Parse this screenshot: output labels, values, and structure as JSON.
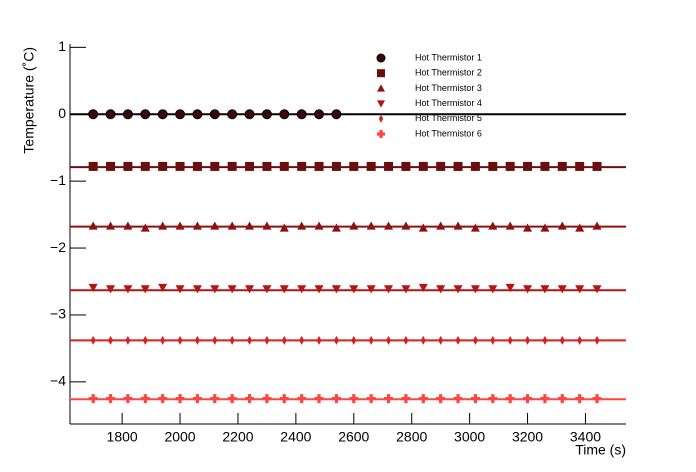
{
  "chart_data": {
    "type": "scatter",
    "x_label": "Time (s)",
    "y_label": "Temperature (˚C)",
    "xlim": [
      1620,
      3540
    ],
    "ylim": [
      -4.63,
      1.05
    ],
    "xticks": [
      1800,
      2000,
      2200,
      2400,
      2600,
      2800,
      3000,
      3200,
      3400
    ],
    "yticks": [
      1,
      0,
      {
        "value": -1,
        "label": "−1"
      },
      {
        "value": -2,
        "label": "−2"
      },
      {
        "value": -3,
        "label": "−3"
      },
      {
        "value": -4,
        "label": "−4"
      }
    ],
    "series": [
      {
        "name": "Hot Thermistor 1",
        "color": "#3a0808",
        "marker": "circle",
        "fit": 0,
        "x": [
          1700,
          1760,
          1820,
          1880,
          1940,
          2000,
          2060,
          2120,
          2180,
          2240,
          2300,
          2360,
          2420,
          2480,
          2540
        ],
        "values": [
          0,
          0,
          0,
          0,
          0,
          0,
          0,
          0,
          0,
          0,
          0,
          0,
          0,
          0,
          0
        ]
      },
      {
        "name": "Hot Thermistor 2",
        "color": "#6b0e0e",
        "marker": "square",
        "fit": -0.79,
        "x": [
          1700,
          1760,
          1820,
          1880,
          1940,
          2000,
          2060,
          2120,
          2180,
          2240,
          2300,
          2360,
          2420,
          2480,
          2540,
          2600,
          2660,
          2720,
          2780,
          2840,
          2900,
          2960,
          3020,
          3080,
          3140,
          3200,
          3260,
          3320,
          3380,
          3440
        ],
        "values": [
          -0.78,
          -0.78,
          -0.78,
          -0.78,
          -0.78,
          -0.78,
          -0.78,
          -0.78,
          -0.78,
          -0.78,
          -0.78,
          -0.78,
          -0.78,
          -0.78,
          -0.78,
          -0.78,
          -0.78,
          -0.78,
          -0.78,
          -0.78,
          -0.78,
          -0.78,
          -0.78,
          -0.78,
          -0.78,
          -0.78,
          -0.78,
          -0.78,
          -0.78,
          -0.78
        ]
      },
      {
        "name": "Hot Thermistor 3",
        "color": "#8e1010",
        "marker": "triangle-up",
        "fit": -1.68,
        "x": [
          1700,
          1760,
          1820,
          1880,
          1940,
          2000,
          2060,
          2120,
          2180,
          2240,
          2300,
          2360,
          2420,
          2480,
          2540,
          2600,
          2660,
          2720,
          2780,
          2840,
          2900,
          2960,
          3020,
          3080,
          3140,
          3200,
          3260,
          3320,
          3380,
          3440
        ],
        "values": [
          -1.67,
          -1.67,
          -1.67,
          -1.7,
          -1.67,
          -1.67,
          -1.67,
          -1.67,
          -1.67,
          -1.67,
          -1.67,
          -1.7,
          -1.67,
          -1.67,
          -1.7,
          -1.67,
          -1.67,
          -1.67,
          -1.67,
          -1.7,
          -1.67,
          -1.67,
          -1.7,
          -1.67,
          -1.67,
          -1.7,
          -1.7,
          -1.67,
          -1.7,
          -1.67
        ]
      },
      {
        "name": "Hot Thermistor 4",
        "color": "#b31414",
        "marker": "triangle-down",
        "fit": -2.63,
        "x": [
          1700,
          1760,
          1820,
          1880,
          1940,
          2000,
          2060,
          2120,
          2180,
          2240,
          2300,
          2360,
          2420,
          2480,
          2540,
          2600,
          2660,
          2720,
          2780,
          2840,
          2900,
          2960,
          3020,
          3080,
          3140,
          3200,
          3260,
          3320,
          3380,
          3440
        ],
        "values": [
          -2.59,
          -2.61,
          -2.61,
          -2.61,
          -2.59,
          -2.61,
          -2.61,
          -2.61,
          -2.61,
          -2.61,
          -2.61,
          -2.61,
          -2.61,
          -2.61,
          -2.61,
          -2.61,
          -2.61,
          -2.61,
          -2.61,
          -2.59,
          -2.61,
          -2.61,
          -2.61,
          -2.61,
          -2.59,
          -2.61,
          -2.61,
          -2.61,
          -2.61,
          -2.61
        ]
      },
      {
        "name": "Hot Thermistor 5",
        "color": "#d81e1e",
        "marker": "diamond",
        "fit": -3.38,
        "x": [
          1700,
          1760,
          1820,
          1880,
          1940,
          2000,
          2060,
          2120,
          2180,
          2240,
          2300,
          2360,
          2420,
          2480,
          2540,
          2600,
          2660,
          2720,
          2780,
          2840,
          2900,
          2960,
          3020,
          3080,
          3140,
          3200,
          3260,
          3320,
          3380,
          3440
        ],
        "values": [
          -3.38,
          -3.38,
          -3.38,
          -3.38,
          -3.38,
          -3.38,
          -3.38,
          -3.38,
          -3.38,
          -3.38,
          -3.38,
          -3.38,
          -3.38,
          -3.38,
          -3.38,
          -3.38,
          -3.38,
          -3.38,
          -3.38,
          -3.38,
          -3.38,
          -3.38,
          -3.38,
          -3.38,
          -3.38,
          -3.38,
          -3.38,
          -3.38,
          -3.38,
          -3.38
        ]
      },
      {
        "name": "Hot Thermistor 6",
        "color": "#ff4444",
        "marker": "cross",
        "fit": -4.26,
        "x": [
          1700,
          1760,
          1820,
          1880,
          1940,
          2000,
          2060,
          2120,
          2180,
          2240,
          2300,
          2360,
          2420,
          2480,
          2540,
          2600,
          2660,
          2720,
          2780,
          2840,
          2900,
          2960,
          3020,
          3080,
          3140,
          3200,
          3260,
          3320,
          3380,
          3440
        ],
        "values": [
          -4.25,
          -4.25,
          -4.25,
          -4.25,
          -4.25,
          -4.25,
          -4.25,
          -4.25,
          -4.25,
          -4.25,
          -4.25,
          -4.25,
          -4.25,
          -4.25,
          -4.25,
          -4.25,
          -4.25,
          -4.25,
          -4.25,
          -4.25,
          -4.25,
          -4.25,
          -4.25,
          -4.25,
          -4.25,
          -4.25,
          -4.25,
          -4.25,
          -4.25,
          -4.25
        ]
      }
    ]
  }
}
